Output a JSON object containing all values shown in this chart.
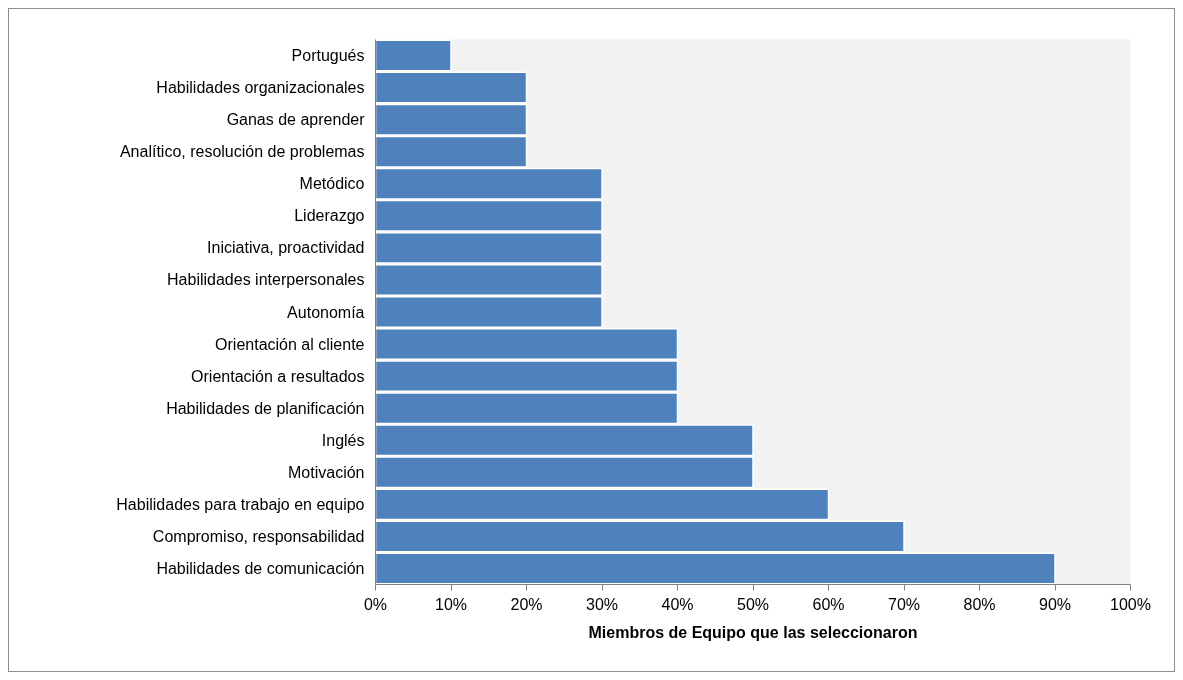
{
  "chart_data": {
    "type": "bar",
    "orientation": "horizontal",
    "xlabel": "Miembros de Equipo que las seleccionaron",
    "categories": [
      "Portugués",
      "Habilidades organizacionales",
      "Ganas de aprender",
      "Analítico, resolución de problemas",
      "Metódico",
      "Liderazgo",
      "Iniciativa, proactividad",
      "Habilidades interpersonales",
      "Autonomía",
      "Orientación al cliente",
      "Orientación a resultados",
      "Habilidades de planificación",
      "Inglés",
      "Motivación",
      "Habilidades para trabajo en equipo",
      "Compromiso, responsabilidad",
      "Habilidades de comunicación"
    ],
    "values": [
      10,
      20,
      20,
      20,
      30,
      30,
      30,
      30,
      30,
      40,
      40,
      40,
      50,
      50,
      60,
      70,
      90
    ],
    "color": "#4f81bd",
    "xlim": [
      0,
      100
    ],
    "xticks": [
      {
        "value": 0,
        "label": "0%"
      },
      {
        "value": 10,
        "label": "10%"
      },
      {
        "value": 20,
        "label": "20%"
      },
      {
        "value": 30,
        "label": "30%"
      },
      {
        "value": 40,
        "label": "40%"
      },
      {
        "value": 50,
        "label": "50%"
      },
      {
        "value": 60,
        "label": "60%"
      },
      {
        "value": 70,
        "label": "70%"
      },
      {
        "value": 80,
        "label": "80%"
      },
      {
        "value": 90,
        "label": "90%"
      },
      {
        "value": 100,
        "label": "100%"
      }
    ],
    "grid": false
  }
}
